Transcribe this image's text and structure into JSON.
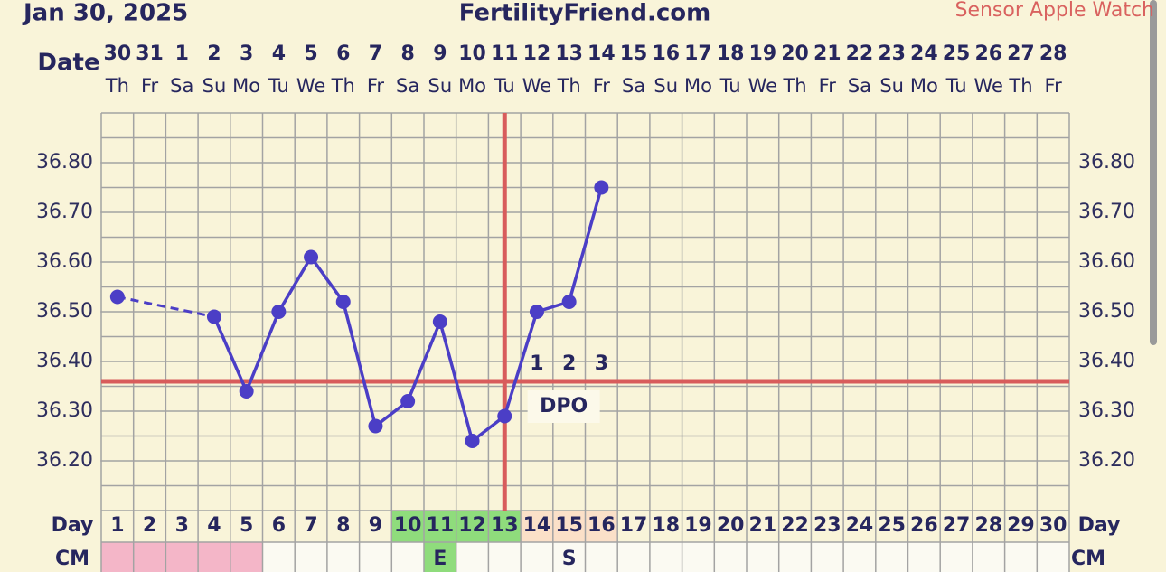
{
  "header": {
    "date": "Jan 30, 2025",
    "site": "FertilityFriend.com",
    "sensor": "Sensor Apple Watch"
  },
  "chart_data": {
    "type": "line",
    "row_labels": {
      "date": "Date",
      "day": "Day",
      "cm": "CM"
    },
    "dates": [
      30,
      31,
      1,
      2,
      3,
      4,
      5,
      6,
      7,
      8,
      9,
      10,
      11,
      12,
      13,
      14,
      15,
      16,
      17,
      18,
      19,
      20,
      21,
      22,
      23,
      24,
      25,
      26,
      27,
      28
    ],
    "weekdays": [
      "Th",
      "Fr",
      "Sa",
      "Su",
      "Mo",
      "Tu",
      "We",
      "Th",
      "Fr",
      "Sa",
      "Su",
      "Mo",
      "Tu",
      "We",
      "Th",
      "Fr",
      "Sa",
      "Su",
      "Mo",
      "Tu",
      "We",
      "Th",
      "Fr",
      "Sa",
      "Su",
      "Mo",
      "Tu",
      "We",
      "Th",
      "Fr"
    ],
    "categories": [
      1,
      2,
      3,
      4,
      5,
      6,
      7,
      8,
      9,
      10,
      11,
      12,
      13,
      14,
      15,
      16,
      17,
      18,
      19,
      20,
      21,
      22,
      23,
      24,
      25,
      26,
      27,
      28,
      29,
      30
    ],
    "values": [
      36.53,
      null,
      null,
      36.49,
      36.34,
      36.5,
      36.61,
      36.52,
      36.27,
      36.32,
      36.48,
      36.24,
      36.29,
      36.5,
      36.52,
      36.75,
      null,
      null,
      null,
      null,
      null,
      null,
      null,
      null,
      null,
      null,
      null,
      null,
      null,
      null
    ],
    "color": "#4b3ec6",
    "ylim": [
      36.1,
      36.9
    ],
    "yticks": [
      {
        "value": 36.2,
        "label": "36.20"
      },
      {
        "value": 36.3,
        "label": "36.30"
      },
      {
        "value": 36.4,
        "label": "36.40"
      },
      {
        "value": 36.5,
        "label": "36.50"
      },
      {
        "value": 36.6,
        "label": "36.60"
      },
      {
        "value": 36.7,
        "label": "36.70"
      },
      {
        "value": 36.8,
        "label": "36.80"
      }
    ],
    "grid": true,
    "coverline": 36.36,
    "coverline_color": "#d85c5c",
    "ovulation_day": 13,
    "dpo_label": "DPO",
    "dpo": [
      null,
      null,
      null,
      null,
      null,
      null,
      null,
      null,
      null,
      null,
      null,
      null,
      null,
      1,
      2,
      3,
      null,
      null,
      null,
      null,
      null,
      null,
      null,
      null,
      null,
      null,
      null,
      null,
      null,
      null
    ],
    "day_colors": [
      null,
      null,
      null,
      null,
      null,
      null,
      null,
      null,
      null,
      "#8fdc7c",
      "#8fdc7c",
      "#8fdc7c",
      "#8fdc7c",
      "#fbe0c8",
      "#fbe0c8",
      "#fbe0c8",
      null,
      null,
      null,
      null,
      null,
      null,
      null,
      null,
      null,
      null,
      null,
      null,
      null,
      null
    ],
    "cm": [
      null,
      null,
      null,
      null,
      null,
      null,
      null,
      null,
      null,
      null,
      "E",
      null,
      null,
      null,
      "S",
      null,
      null,
      null,
      null,
      null,
      null,
      null,
      null,
      null,
      null,
      null,
      null,
      null,
      null,
      null
    ],
    "cm_colors": [
      "#f4b6c8",
      "#f4b6c8",
      "#f4b6c8",
      "#f4b6c8",
      "#f4b6c8",
      null,
      null,
      null,
      null,
      null,
      "#8fdc7c",
      null,
      null,
      null,
      null,
      null,
      null,
      null,
      null,
      null,
      null,
      null,
      null,
      null,
      null,
      null,
      null,
      null,
      null,
      null
    ]
  }
}
